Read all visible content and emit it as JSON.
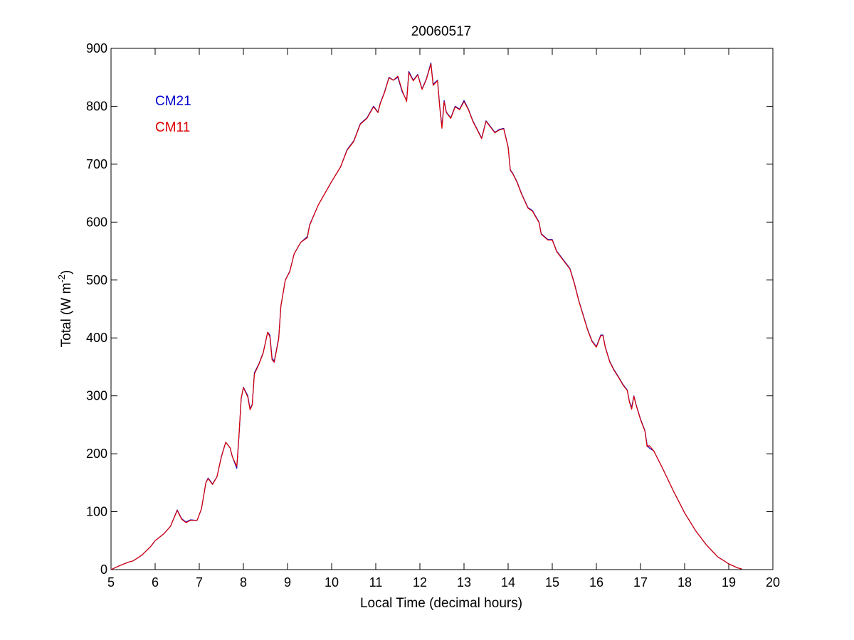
{
  "chart_data": {
    "type": "line",
    "title": "20060517",
    "xlabel": "Local Time (decimal hours)",
    "ylabel_main": "Total (W m",
    "ylabel_exp": "-2",
    "ylabel_close": ")",
    "xlim": [
      5,
      20
    ],
    "ylim": [
      0,
      900
    ],
    "x_ticks": [
      5,
      6,
      7,
      8,
      9,
      10,
      11,
      12,
      13,
      14,
      15,
      16,
      17,
      18,
      19,
      20
    ],
    "y_ticks": [
      0,
      100,
      200,
      300,
      400,
      500,
      600,
      700,
      800,
      900
    ],
    "grid": false,
    "legend_position": "top-left",
    "series": [
      {
        "name": "CM21",
        "color": "#0000cc",
        "points": [
          [
            5.0,
            0
          ],
          [
            5.2,
            7
          ],
          [
            5.4,
            13
          ],
          [
            5.5,
            15
          ],
          [
            5.7,
            25
          ],
          [
            5.9,
            40
          ],
          [
            6.0,
            50
          ],
          [
            6.2,
            62
          ],
          [
            6.35,
            75
          ],
          [
            6.5,
            103
          ],
          [
            6.6,
            88
          ],
          [
            6.7,
            82
          ],
          [
            6.8,
            86
          ],
          [
            6.95,
            85
          ],
          [
            7.05,
            105
          ],
          [
            7.15,
            150
          ],
          [
            7.2,
            158
          ],
          [
            7.3,
            148
          ],
          [
            7.4,
            160
          ],
          [
            7.5,
            195
          ],
          [
            7.6,
            220
          ],
          [
            7.7,
            210
          ],
          [
            7.75,
            195
          ],
          [
            7.85,
            175
          ],
          [
            7.9,
            230
          ],
          [
            7.95,
            295
          ],
          [
            8.0,
            315
          ],
          [
            8.1,
            300
          ],
          [
            8.15,
            278
          ],
          [
            8.2,
            285
          ],
          [
            8.25,
            340
          ],
          [
            8.35,
            355
          ],
          [
            8.45,
            375
          ],
          [
            8.55,
            410
          ],
          [
            8.6,
            405
          ],
          [
            8.65,
            365
          ],
          [
            8.7,
            360
          ],
          [
            8.8,
            400
          ],
          [
            8.85,
            455
          ],
          [
            8.95,
            500
          ],
          [
            9.05,
            515
          ],
          [
            9.15,
            545
          ],
          [
            9.3,
            565
          ],
          [
            9.45,
            575
          ],
          [
            9.5,
            595
          ],
          [
            9.7,
            630
          ],
          [
            9.85,
            650
          ],
          [
            10.0,
            670
          ],
          [
            10.2,
            695
          ],
          [
            10.35,
            725
          ],
          [
            10.5,
            740
          ],
          [
            10.65,
            770
          ],
          [
            10.8,
            780
          ],
          [
            10.95,
            800
          ],
          [
            11.05,
            790
          ],
          [
            11.1,
            805
          ],
          [
            11.2,
            825
          ],
          [
            11.3,
            850
          ],
          [
            11.4,
            845
          ],
          [
            11.5,
            850
          ],
          [
            11.6,
            825
          ],
          [
            11.7,
            810
          ],
          [
            11.75,
            860
          ],
          [
            11.85,
            845
          ],
          [
            11.95,
            855
          ],
          [
            12.05,
            830
          ],
          [
            12.15,
            848
          ],
          [
            12.25,
            875
          ],
          [
            12.3,
            838
          ],
          [
            12.4,
            845
          ],
          [
            12.45,
            800
          ],
          [
            12.5,
            765
          ],
          [
            12.55,
            810
          ],
          [
            12.6,
            790
          ],
          [
            12.7,
            780
          ],
          [
            12.8,
            800
          ],
          [
            12.9,
            795
          ],
          [
            13.0,
            810
          ],
          [
            13.1,
            795
          ],
          [
            13.2,
            775
          ],
          [
            13.3,
            760
          ],
          [
            13.4,
            745
          ],
          [
            13.5,
            775
          ],
          [
            13.6,
            765
          ],
          [
            13.7,
            755
          ],
          [
            13.8,
            760
          ],
          [
            13.9,
            762
          ],
          [
            14.0,
            730
          ],
          [
            14.05,
            690
          ],
          [
            14.1,
            685
          ],
          [
            14.2,
            670
          ],
          [
            14.3,
            650
          ],
          [
            14.45,
            625
          ],
          [
            14.55,
            620
          ],
          [
            14.7,
            600
          ],
          [
            14.75,
            580
          ],
          [
            14.9,
            570
          ],
          [
            15.0,
            570
          ],
          [
            15.1,
            550
          ],
          [
            15.25,
            535
          ],
          [
            15.4,
            520
          ],
          [
            15.5,
            495
          ],
          [
            15.6,
            465
          ],
          [
            15.7,
            440
          ],
          [
            15.8,
            415
          ],
          [
            15.9,
            395
          ],
          [
            16.0,
            385
          ],
          [
            16.1,
            405
          ],
          [
            16.15,
            405
          ],
          [
            16.2,
            385
          ],
          [
            16.3,
            360
          ],
          [
            16.4,
            345
          ],
          [
            16.5,
            333
          ],
          [
            16.6,
            320
          ],
          [
            16.7,
            310
          ],
          [
            16.75,
            290
          ],
          [
            16.8,
            280
          ],
          [
            16.85,
            300
          ],
          [
            16.9,
            285
          ],
          [
            17.0,
            260
          ],
          [
            17.1,
            240
          ],
          [
            17.15,
            215
          ],
          [
            17.2,
            210
          ],
          [
            17.3,
            205
          ],
          [
            17.5,
            175
          ],
          [
            17.75,
            135
          ],
          [
            18.0,
            98
          ],
          [
            18.25,
            67
          ],
          [
            18.5,
            42
          ],
          [
            18.75,
            22
          ],
          [
            19.0,
            10
          ],
          [
            19.2,
            3
          ],
          [
            19.3,
            1
          ]
        ]
      },
      {
        "name": "CM11",
        "color": "#dd0000",
        "points": [
          [
            5.0,
            0
          ],
          [
            5.2,
            7
          ],
          [
            5.4,
            13
          ],
          [
            5.5,
            15
          ],
          [
            5.7,
            25
          ],
          [
            5.9,
            40
          ],
          [
            6.0,
            50
          ],
          [
            6.2,
            62
          ],
          [
            6.35,
            75
          ],
          [
            6.5,
            102
          ],
          [
            6.6,
            87
          ],
          [
            6.7,
            81
          ],
          [
            6.8,
            85
          ],
          [
            6.95,
            85
          ],
          [
            7.05,
            105
          ],
          [
            7.15,
            150
          ],
          [
            7.2,
            157
          ],
          [
            7.3,
            147
          ],
          [
            7.4,
            160
          ],
          [
            7.5,
            194
          ],
          [
            7.6,
            220
          ],
          [
            7.7,
            210
          ],
          [
            7.75,
            195
          ],
          [
            7.85,
            178
          ],
          [
            7.9,
            232
          ],
          [
            7.95,
            296
          ],
          [
            8.0,
            314
          ],
          [
            8.1,
            298
          ],
          [
            8.15,
            276
          ],
          [
            8.2,
            284
          ],
          [
            8.25,
            338
          ],
          [
            8.35,
            354
          ],
          [
            8.45,
            374
          ],
          [
            8.55,
            410
          ],
          [
            8.6,
            402
          ],
          [
            8.65,
            362
          ],
          [
            8.7,
            358
          ],
          [
            8.8,
            398
          ],
          [
            8.85,
            455
          ],
          [
            8.95,
            500
          ],
          [
            9.05,
            514
          ],
          [
            9.15,
            545
          ],
          [
            9.3,
            565
          ],
          [
            9.45,
            573
          ],
          [
            9.5,
            594
          ],
          [
            9.7,
            630
          ],
          [
            9.85,
            650
          ],
          [
            10.0,
            670
          ],
          [
            10.2,
            695
          ],
          [
            10.35,
            724
          ],
          [
            10.5,
            739
          ],
          [
            10.65,
            769
          ],
          [
            10.8,
            779
          ],
          [
            10.95,
            799
          ],
          [
            11.05,
            789
          ],
          [
            11.1,
            804
          ],
          [
            11.2,
            824
          ],
          [
            11.3,
            849
          ],
          [
            11.4,
            845
          ],
          [
            11.5,
            852
          ],
          [
            11.6,
            827
          ],
          [
            11.7,
            808
          ],
          [
            11.75,
            858
          ],
          [
            11.85,
            844
          ],
          [
            11.95,
            854
          ],
          [
            12.05,
            829
          ],
          [
            12.15,
            847
          ],
          [
            12.25,
            873
          ],
          [
            12.3,
            836
          ],
          [
            12.4,
            844
          ],
          [
            12.45,
            798
          ],
          [
            12.5,
            762
          ],
          [
            12.55,
            808
          ],
          [
            12.6,
            789
          ],
          [
            12.7,
            779
          ],
          [
            12.8,
            799
          ],
          [
            12.9,
            794
          ],
          [
            13.0,
            808
          ],
          [
            13.1,
            794
          ],
          [
            13.2,
            774
          ],
          [
            13.3,
            759
          ],
          [
            13.4,
            744
          ],
          [
            13.5,
            774
          ],
          [
            13.6,
            764
          ],
          [
            13.7,
            754
          ],
          [
            13.8,
            759
          ],
          [
            13.9,
            761
          ],
          [
            14.0,
            729
          ],
          [
            14.05,
            689
          ],
          [
            14.1,
            684
          ],
          [
            14.2,
            669
          ],
          [
            14.3,
            649
          ],
          [
            14.45,
            624
          ],
          [
            14.55,
            619
          ],
          [
            14.7,
            599
          ],
          [
            14.75,
            579
          ],
          [
            14.9,
            569
          ],
          [
            15.0,
            569
          ],
          [
            15.1,
            549
          ],
          [
            15.25,
            534
          ],
          [
            15.4,
            519
          ],
          [
            15.5,
            494
          ],
          [
            15.6,
            464
          ],
          [
            15.7,
            439
          ],
          [
            15.8,
            414
          ],
          [
            15.9,
            394
          ],
          [
            16.0,
            384
          ],
          [
            16.1,
            404
          ],
          [
            16.15,
            404
          ],
          [
            16.2,
            384
          ],
          [
            16.3,
            359
          ],
          [
            16.4,
            344
          ],
          [
            16.5,
            332
          ],
          [
            16.6,
            319
          ],
          [
            16.7,
            309
          ],
          [
            16.75,
            289
          ],
          [
            16.8,
            277
          ],
          [
            16.85,
            299
          ],
          [
            16.9,
            284
          ],
          [
            17.0,
            259
          ],
          [
            17.1,
            239
          ],
          [
            17.15,
            212
          ],
          [
            17.2,
            214
          ],
          [
            17.3,
            205
          ],
          [
            17.5,
            175
          ],
          [
            17.75,
            135
          ],
          [
            18.0,
            98
          ],
          [
            18.25,
            67
          ],
          [
            18.5,
            42
          ],
          [
            18.75,
            22
          ],
          [
            19.0,
            10
          ],
          [
            19.2,
            3
          ],
          [
            19.3,
            1
          ]
        ]
      }
    ]
  }
}
